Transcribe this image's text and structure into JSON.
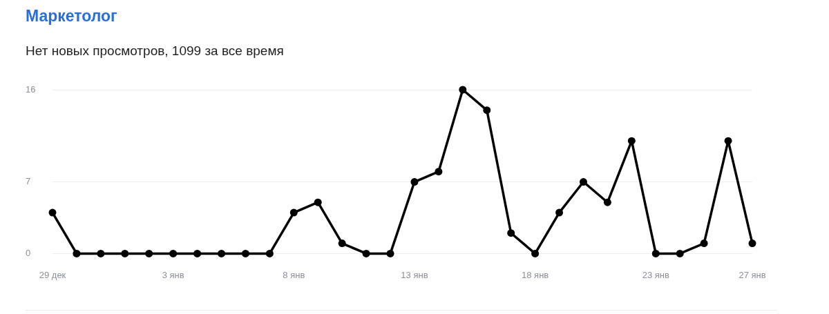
{
  "chart_data": {
    "type": "line",
    "title": "Маркетолог",
    "subtitle": "Нет новых просмотров, 1099 за все время",
    "categories": [
      "29 дек",
      null,
      null,
      null,
      null,
      "3 янв",
      null,
      null,
      null,
      null,
      "8 янв",
      null,
      null,
      null,
      null,
      "13 янв",
      null,
      null,
      null,
      null,
      "18 янв",
      null,
      null,
      null,
      null,
      "23 янв",
      null,
      null,
      null,
      "27 янв"
    ],
    "values": [
      4,
      0,
      0,
      0,
      0,
      0,
      0,
      0,
      0,
      0,
      4,
      5,
      1,
      0,
      0,
      7,
      8,
      16,
      14,
      2,
      0,
      4,
      7,
      5,
      11,
      0,
      0,
      1,
      11,
      1
    ],
    "color": "#000000",
    "ylim": [
      0,
      16
    ],
    "yticks": [
      0,
      7,
      16
    ],
    "grid": "y",
    "marker": "circle",
    "line_style": "solid"
  }
}
